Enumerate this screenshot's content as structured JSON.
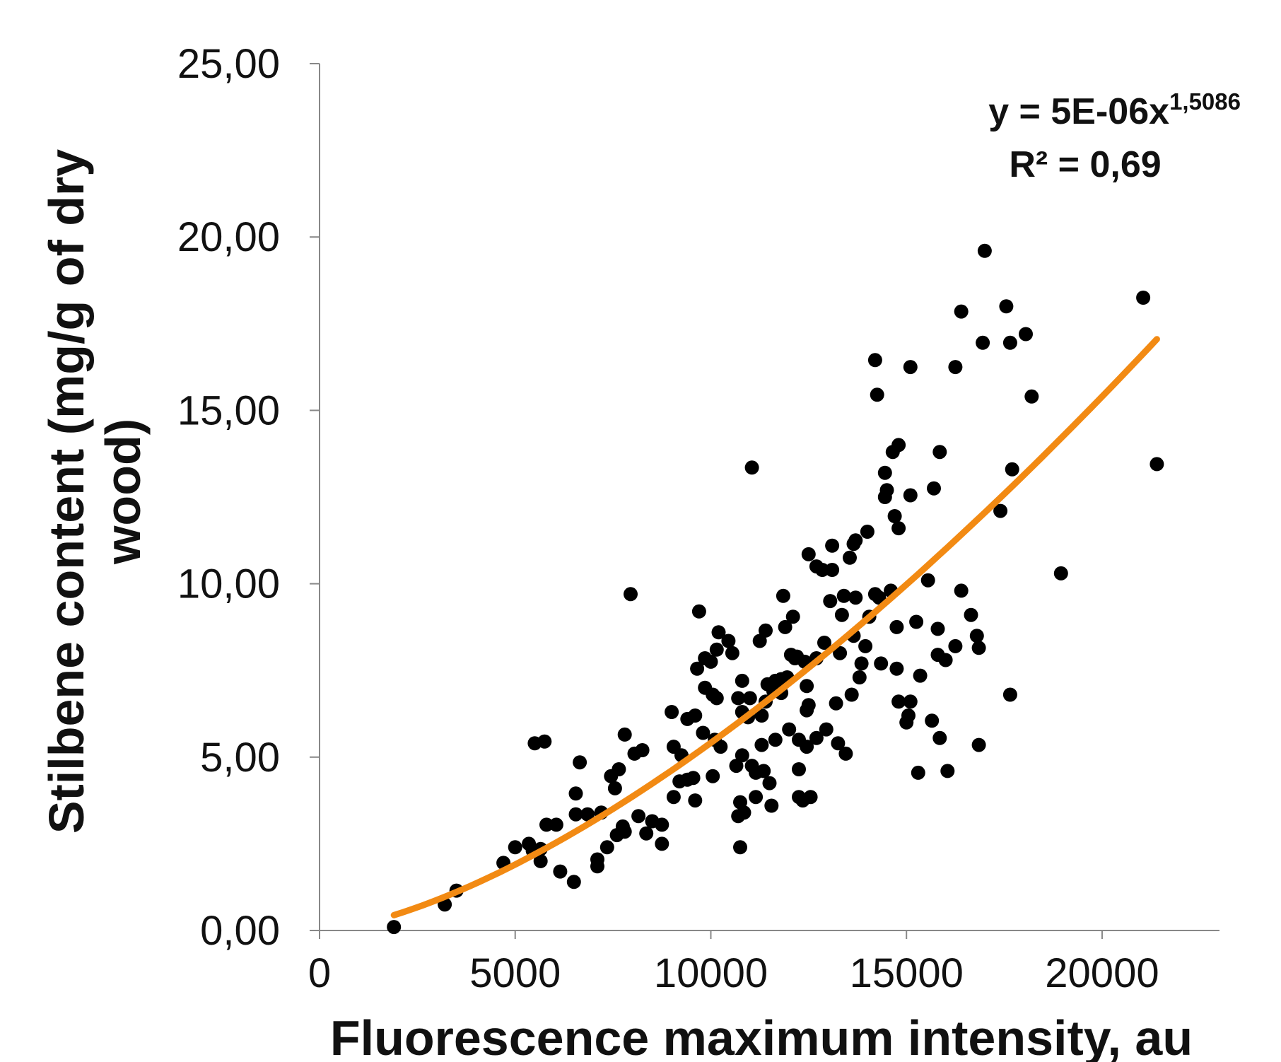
{
  "chart_data": {
    "type": "scatter",
    "xlabel": "Fluorescence maximum intensity, au",
    "ylabel_lines": [
      "Stilbene content (mg/g of dry",
      "wood)"
    ],
    "xlim": [
      0,
      23000
    ],
    "ylim": [
      0,
      25
    ],
    "x_ticks": [
      0,
      5000,
      10000,
      15000,
      20000
    ],
    "x_tick_labels": [
      "0",
      "5000",
      "10000",
      "15000",
      "20000"
    ],
    "y_ticks": [
      0,
      5,
      10,
      15,
      20,
      25
    ],
    "y_tick_labels": [
      "0,00",
      "5,00",
      "10,00",
      "15,00",
      "20,00",
      "25,00"
    ],
    "grid": false,
    "marker_color": "#000000",
    "trendline": {
      "type": "power",
      "coefficient": 5e-06,
      "exponent": 1.5086,
      "x_range": [
        1900,
        21400
      ],
      "color": "#f28a13",
      "equation_main": "y = 5E-06x",
      "equation_exponent": "1,5086",
      "r_squared_label": "R² = 0,69"
    },
    "points": [
      [
        1900,
        0.1
      ],
      [
        3200,
        0.75
      ],
      [
        3500,
        1.15
      ],
      [
        4700,
        1.95
      ],
      [
        5000,
        2.4
      ],
      [
        5350,
        2.5
      ],
      [
        5450,
        2.3
      ],
      [
        5650,
        2.0
      ],
      [
        5500,
        5.4
      ],
      [
        5750,
        5.45
      ],
      [
        5800,
        3.05
      ],
      [
        5650,
        2.35
      ],
      [
        6050,
        3.05
      ],
      [
        6150,
        1.7
      ],
      [
        6500,
        1.4
      ],
      [
        6550,
        3.95
      ],
      [
        6650,
        4.85
      ],
      [
        6550,
        3.35
      ],
      [
        6850,
        3.35
      ],
      [
        7100,
        1.85
      ],
      [
        7100,
        2.05
      ],
      [
        7200,
        3.4
      ],
      [
        7350,
        2.4
      ],
      [
        7450,
        4.45
      ],
      [
        7550,
        4.1
      ],
      [
        7650,
        4.65
      ],
      [
        7600,
        2.75
      ],
      [
        7750,
        3.0
      ],
      [
        7800,
        5.65
      ],
      [
        7800,
        2.85
      ],
      [
        7950,
        9.7
      ],
      [
        8050,
        5.1
      ],
      [
        8150,
        3.3
      ],
      [
        8250,
        5.2
      ],
      [
        8350,
        2.8
      ],
      [
        8500,
        3.15
      ],
      [
        8750,
        2.5
      ],
      [
        8750,
        3.05
      ],
      [
        9000,
        6.3
      ],
      [
        9050,
        5.3
      ],
      [
        9050,
        3.85
      ],
      [
        9200,
        4.3
      ],
      [
        9250,
        5.05
      ],
      [
        9400,
        6.1
      ],
      [
        9400,
        4.35
      ],
      [
        9600,
        3.75
      ],
      [
        9600,
        6.2
      ],
      [
        9650,
        7.55
      ],
      [
        9550,
        4.4
      ],
      [
        9700,
        9.2
      ],
      [
        9850,
        7.85
      ],
      [
        9800,
        5.7
      ],
      [
        9850,
        7.0
      ],
      [
        10000,
        7.75
      ],
      [
        10050,
        6.8
      ],
      [
        10050,
        4.45
      ],
      [
        10100,
        5.5
      ],
      [
        10150,
        8.1
      ],
      [
        10150,
        6.7
      ],
      [
        10200,
        8.6
      ],
      [
        10250,
        5.3
      ],
      [
        10450,
        8.35
      ],
      [
        10550,
        8.0
      ],
      [
        10650,
        4.75
      ],
      [
        10700,
        6.7
      ],
      [
        10750,
        3.7
      ],
      [
        10700,
        3.3
      ],
      [
        10750,
        2.4
      ],
      [
        10850,
        3.4
      ],
      [
        10800,
        7.2
      ],
      [
        10800,
        5.05
      ],
      [
        10800,
        6.3
      ],
      [
        10950,
        6.15
      ],
      [
        11000,
        6.7
      ],
      [
        11050,
        13.35
      ],
      [
        11050,
        4.75
      ],
      [
        11150,
        4.55
      ],
      [
        11150,
        3.85
      ],
      [
        11250,
        8.35
      ],
      [
        11300,
        5.35
      ],
      [
        11350,
        4.6
      ],
      [
        11300,
        6.2
      ],
      [
        11400,
        8.65
      ],
      [
        11450,
        7.1
      ],
      [
        11400,
        6.6
      ],
      [
        11500,
        4.25
      ],
      [
        11550,
        3.6
      ],
      [
        11600,
        6.9
      ],
      [
        11650,
        7.2
      ],
      [
        11650,
        5.5
      ],
      [
        11800,
        7.25
      ],
      [
        11800,
        6.85
      ],
      [
        11850,
        9.65
      ],
      [
        11900,
        8.75
      ],
      [
        11950,
        7.3
      ],
      [
        12000,
        5.8
      ],
      [
        12050,
        7.95
      ],
      [
        12100,
        9.05
      ],
      [
        12150,
        7.85
      ],
      [
        12200,
        7.9
      ],
      [
        12250,
        5.5
      ],
      [
        12250,
        4.65
      ],
      [
        12250,
        3.85
      ],
      [
        12350,
        3.75
      ],
      [
        12400,
        7.75
      ],
      [
        12450,
        7.05
      ],
      [
        12450,
        5.3
      ],
      [
        12450,
        6.35
      ],
      [
        12500,
        6.5
      ],
      [
        12500,
        10.85
      ],
      [
        12550,
        3.85
      ],
      [
        12700,
        10.5
      ],
      [
        12700,
        7.85
      ],
      [
        12700,
        5.55
      ],
      [
        12850,
        10.4
      ],
      [
        12900,
        8.3
      ],
      [
        12950,
        5.8
      ],
      [
        13050,
        9.5
      ],
      [
        13100,
        10.4
      ],
      [
        13100,
        11.1
      ],
      [
        13200,
        6.55
      ],
      [
        13250,
        5.4
      ],
      [
        13300,
        8.0
      ],
      [
        13350,
        9.1
      ],
      [
        13400,
        9.65
      ],
      [
        13450,
        5.1
      ],
      [
        13550,
        10.75
      ],
      [
        13600,
        6.8
      ],
      [
        13650,
        8.5
      ],
      [
        13650,
        11.15
      ],
      [
        13700,
        11.25
      ],
      [
        13700,
        9.6
      ],
      [
        13800,
        7.3
      ],
      [
        13850,
        7.7
      ],
      [
        13950,
        8.2
      ],
      [
        14000,
        11.5
      ],
      [
        14050,
        9.05
      ],
      [
        14200,
        9.7
      ],
      [
        14200,
        16.45
      ],
      [
        14250,
        15.45
      ],
      [
        14300,
        9.6
      ],
      [
        14350,
        7.7
      ],
      [
        14450,
        12.5
      ],
      [
        14450,
        13.2
      ],
      [
        14500,
        12.7
      ],
      [
        14600,
        9.8
      ],
      [
        14650,
        13.8
      ],
      [
        14700,
        11.95
      ],
      [
        14750,
        8.75
      ],
      [
        14750,
        7.55
      ],
      [
        14800,
        14.0
      ],
      [
        14800,
        11.6
      ],
      [
        14800,
        6.6
      ],
      [
        15000,
        6.0
      ],
      [
        15050,
        6.2
      ],
      [
        15100,
        6.6
      ],
      [
        15100,
        12.55
      ],
      [
        15100,
        16.25
      ],
      [
        15250,
        8.9
      ],
      [
        15300,
        4.55
      ],
      [
        15350,
        7.35
      ],
      [
        15550,
        10.1
      ],
      [
        15650,
        6.05
      ],
      [
        15700,
        12.75
      ],
      [
        15800,
        8.7
      ],
      [
        15850,
        13.8
      ],
      [
        15800,
        7.95
      ],
      [
        15850,
        5.55
      ],
      [
        16000,
        7.8
      ],
      [
        16050,
        4.6
      ],
      [
        16250,
        16.25
      ],
      [
        16250,
        8.2
      ],
      [
        16400,
        17.85
      ],
      [
        16400,
        9.8
      ],
      [
        16650,
        9.1
      ],
      [
        16800,
        8.5
      ],
      [
        16850,
        8.15
      ],
      [
        16850,
        5.35
      ],
      [
        16950,
        16.95
      ],
      [
        17000,
        19.6
      ],
      [
        17400,
        12.1
      ],
      [
        17550,
        18.0
      ],
      [
        17650,
        6.8
      ],
      [
        17650,
        16.95
      ],
      [
        17700,
        13.3
      ],
      [
        18050,
        17.2
      ],
      [
        18200,
        15.4
      ],
      [
        18950,
        10.3
      ],
      [
        21050,
        18.25
      ],
      [
        21400,
        13.45
      ]
    ]
  }
}
